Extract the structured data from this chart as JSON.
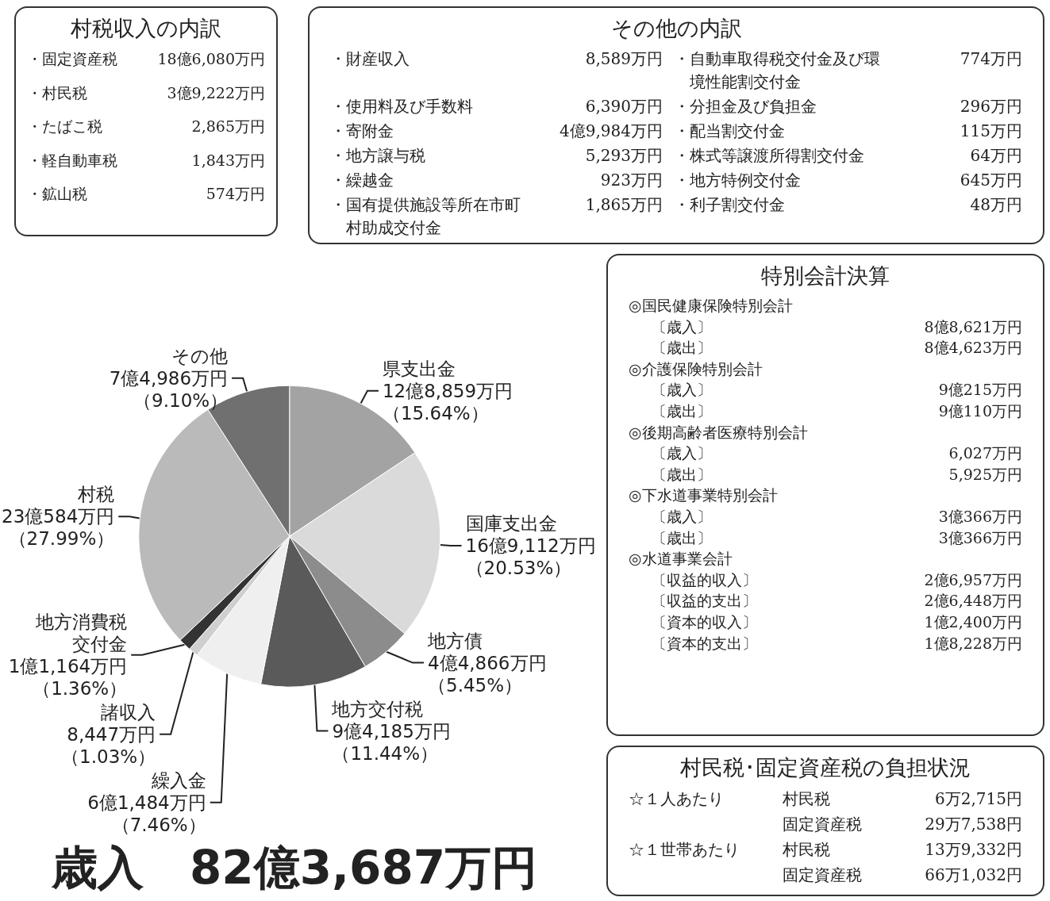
{
  "chart_data": [
    {
      "type": "pie",
      "title": "歳入　82億3,687万円",
      "categories": [
        "県支出金",
        "国庫支出金",
        "地方債",
        "地方交付税",
        "繰入金",
        "諸収入",
        "地方消費税交付金",
        "村税",
        "その他"
      ],
      "values": [
        15.64,
        20.53,
        5.45,
        11.44,
        7.46,
        1.03,
        1.36,
        27.99,
        9.1
      ],
      "value_labels": [
        "12億8,859万円（15.64%）",
        "16億9,112万円（20.53%）",
        "4億4,866万円（5.45%）",
        "9億4,185万円（11.44%）",
        "6億1,484万円（7.46%）",
        "8,447万円（1.03%）",
        "1億1,164万円（1.36%）",
        "23億584万円（27.99%）",
        "7億4,986万円（9.10%）"
      ],
      "colors": [
        "#a3a3a3",
        "#dadada",
        "#8c8c8c",
        "#5a5a5a",
        "#efefef",
        "#cfcfcf",
        "#333333",
        "#bababa",
        "#707070"
      ]
    },
    {
      "type": "other",
      "title": "村税収入の内訳",
      "annotations": [
        "・固定資産税",
        "18億6,080万円",
        "・村民税",
        "3億9,222万円",
        "・たばこ税",
        "2,865万円",
        "・軽自動車税",
        "1,843万円",
        "・鉱山税",
        "574万円"
      ]
    },
    {
      "type": "other",
      "title": "その他の内訳",
      "annotations": [
        "・財産収入",
        "8,589万円",
        "・自動車取得税交付金及び環境性能割交付金",
        "774万円",
        "・使用料及び手数料",
        "6,390万円",
        "・分担金及び負担金",
        "296万円",
        "・寄附金",
        "4億9,984万円",
        "・配当割交付金",
        "115万円",
        "・地方譲与税",
        "5,293万円",
        "・株式等譲渡所得割交付金",
        "64万円",
        "・繰越金",
        "923万円",
        "・地方特例交付金",
        "645万円",
        "・国有提供施設等所在市町村助成交付金",
        "1,865万円",
        "・利子割交付金",
        "48万円"
      ]
    },
    {
      "type": "other",
      "title": "特別会計決算",
      "annotations": [
        "◎国民健康保険特別会計",
        "〔歳入〕",
        "8億8,621万円",
        "〔歳出〕",
        "8億4,623万円",
        "◎介護保険特別会計",
        "〔歳入〕",
        "9億215万円",
        "〔歳出〕",
        "9億110万円",
        "◎後期高齢者医療特別会計",
        "〔歳入〕",
        "6,027万円",
        "〔歳出〕",
        "5,925万円",
        "◎下水道事業特別会計",
        "〔歳入〕",
        "3億366万円",
        "〔歳出〕",
        "3億366万円",
        "◎水道事業会計",
        "〔収益的収入〕",
        "2億6,957万円",
        "〔収益的支出〕",
        "2億6,448万円",
        "〔資本的収入〕",
        "1億2,400万円",
        "〔資本的支出〕",
        "1億8,228万円"
      ]
    },
    {
      "type": "other",
      "title": "村民税･固定資産税の負担状況",
      "annotations": [
        "☆１人あたり",
        "村民税",
        "6万2,715円",
        "固定資産税",
        "29万7,538円",
        "☆１世帯あたり",
        "村民税",
        "13万9,332円",
        "固定資産税",
        "66万1,032円"
      ]
    }
  ]
}
